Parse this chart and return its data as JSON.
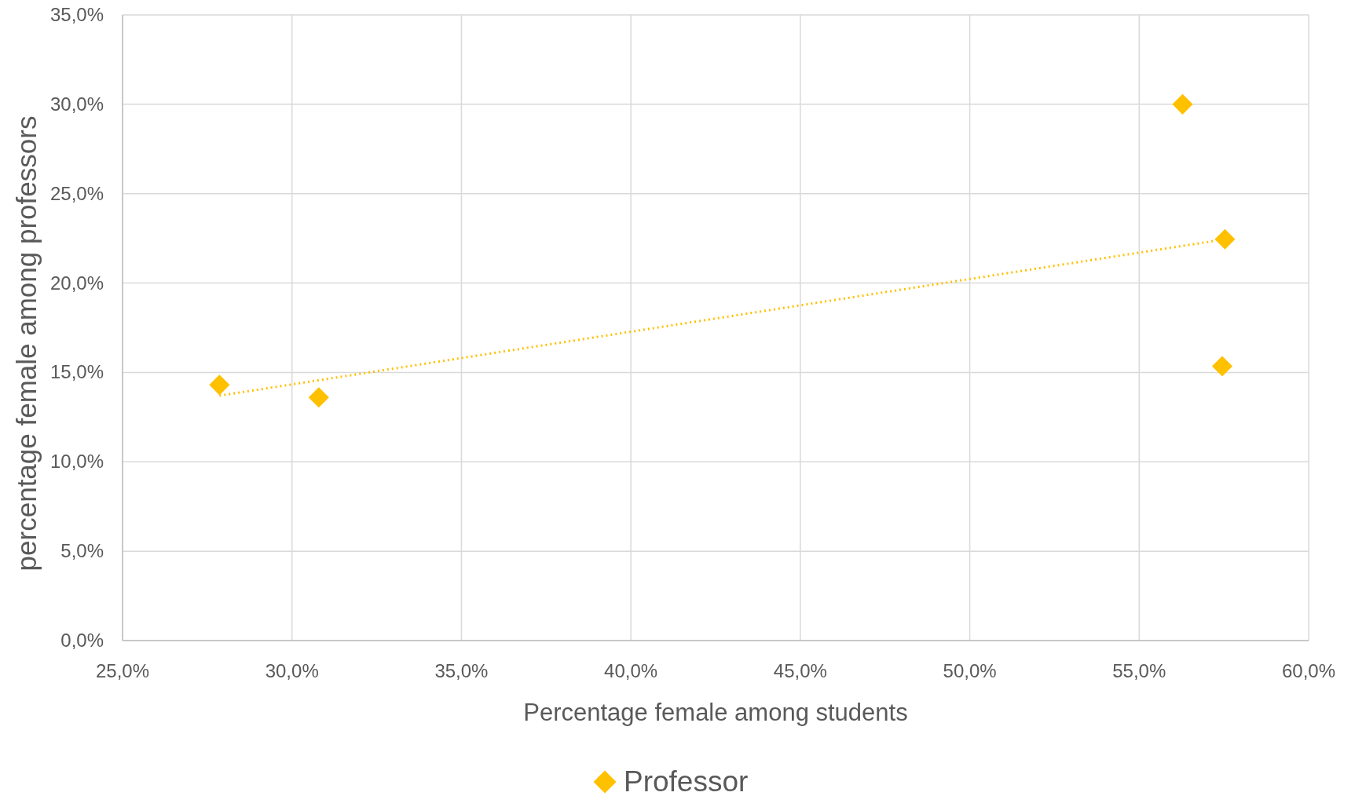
{
  "chart_data": {
    "type": "scatter",
    "xlabel": "Percentage female among students",
    "ylabel": "percentage female among professors",
    "xlim": [
      25,
      60
    ],
    "ylim": [
      0,
      35
    ],
    "xticks": [
      {
        "value": 25,
        "label": "25,0%"
      },
      {
        "value": 30,
        "label": "30,0%"
      },
      {
        "value": 35,
        "label": "35,0%"
      },
      {
        "value": 40,
        "label": "40,0%"
      },
      {
        "value": 45,
        "label": "45,0%"
      },
      {
        "value": 50,
        "label": "50,0%"
      },
      {
        "value": 55,
        "label": "55,0%"
      },
      {
        "value": 60,
        "label": "60,0%"
      }
    ],
    "yticks": [
      {
        "value": 0,
        "label": "0,0%"
      },
      {
        "value": 5,
        "label": "5,0%"
      },
      {
        "value": 10,
        "label": "10,0%"
      },
      {
        "value": 15,
        "label": "15,0%"
      },
      {
        "value": 20,
        "label": "20,0%"
      },
      {
        "value": 25,
        "label": "25,0%"
      },
      {
        "value": 30,
        "label": "30,0%"
      },
      {
        "value": 35,
        "label": "35,0%"
      }
    ],
    "grid": true,
    "legend": "bottom",
    "marker": "diamond",
    "series": [
      {
        "name": "Professor",
        "color": "#ffc000",
        "x": [
          27.86,
          30.79,
          56.28,
          57.53,
          57.45
        ],
        "values": [
          14.3,
          13.6,
          30.0,
          22.45,
          15.35
        ]
      },
      {
        "type": "line",
        "color": "#ffc000",
        "line_style": "dotted",
        "marker": "none",
        "x": [
          27.86,
          57.2
        ],
        "values": [
          13.7,
          22.35
        ]
      }
    ]
  }
}
